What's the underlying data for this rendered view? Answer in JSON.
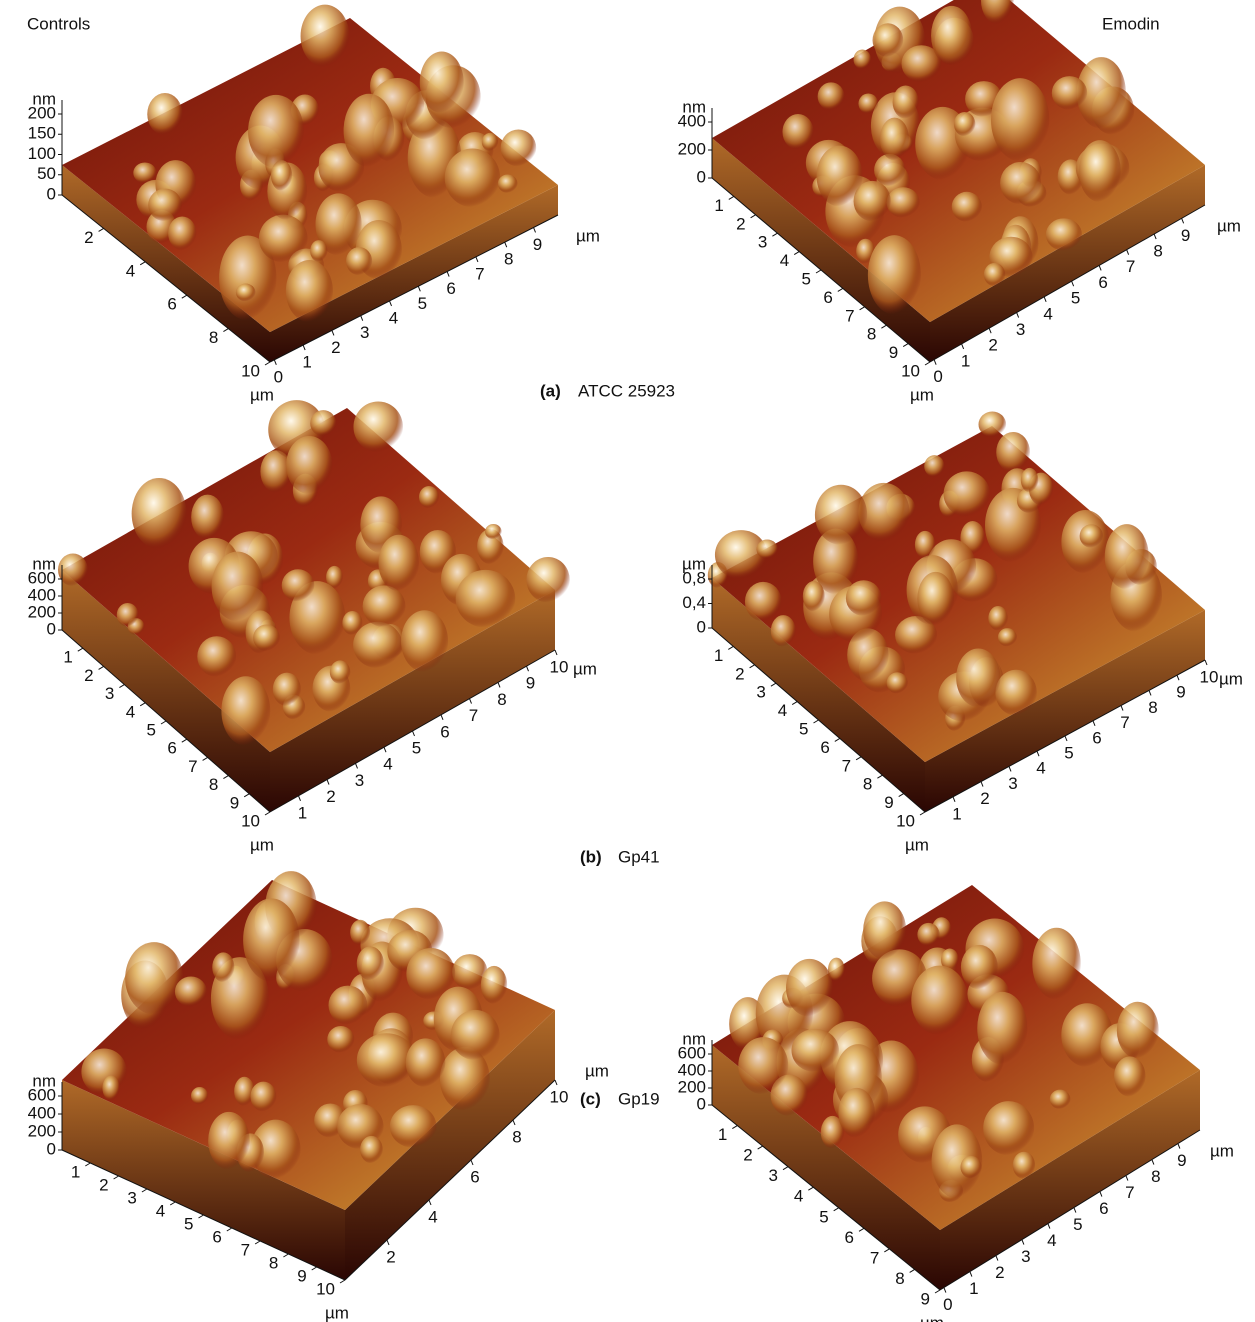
{
  "column_headers": {
    "left": "Controls",
    "right": "Emodin"
  },
  "panels": [
    {
      "label": "(a)",
      "name": "ATCC 25923",
      "images": [
        {
          "z_unit": "nm",
          "z_ticks": [
            "200",
            "150",
            "100",
            "50",
            "0"
          ],
          "x_ticks": [
            "2",
            "4",
            "6",
            "8",
            "10"
          ],
          "x_unit": "µm",
          "y_ticks": [
            "0",
            "1",
            "2",
            "3",
            "4",
            "5",
            "6",
            "7",
            "8",
            "9"
          ],
          "y_unit": "µm"
        },
        {
          "z_unit": "nm",
          "z_ticks": [
            "400",
            "200",
            "0"
          ],
          "x_ticks": [
            "1",
            "2",
            "3",
            "4",
            "5",
            "6",
            "7",
            "8",
            "9",
            "10"
          ],
          "x_unit": "µm",
          "y_ticks": [
            "0",
            "1",
            "2",
            "3",
            "4",
            "5",
            "6",
            "7",
            "8",
            "9"
          ],
          "y_unit": "µm"
        }
      ]
    },
    {
      "label": "(b)",
      "name": "Gp41",
      "images": [
        {
          "z_unit": "nm",
          "z_ticks": [
            "600",
            "400",
            "200",
            "0"
          ],
          "x_ticks": [
            "1",
            "2",
            "3",
            "4",
            "5",
            "6",
            "7",
            "8",
            "9",
            "10"
          ],
          "x_unit": "µm",
          "y_ticks": [
            "1",
            "2",
            "3",
            "4",
            "5",
            "6",
            "7",
            "8",
            "9",
            "10"
          ],
          "y_unit": "µm"
        },
        {
          "z_unit": "µm",
          "z_ticks": [
            "0,8",
            "0,4",
            "0"
          ],
          "x_ticks": [
            "1",
            "2",
            "3",
            "4",
            "5",
            "6",
            "7",
            "8",
            "9",
            "10"
          ],
          "x_unit": "µm",
          "y_ticks": [
            "1",
            "2",
            "3",
            "4",
            "5",
            "6",
            "7",
            "8",
            "9",
            "10"
          ],
          "y_unit": "µm"
        }
      ]
    },
    {
      "label": "(c)",
      "name": "Gp19",
      "images": [
        {
          "z_unit": "nm",
          "z_ticks": [
            "600",
            "400",
            "200",
            "0"
          ],
          "x_ticks": [
            "1",
            "2",
            "3",
            "4",
            "5",
            "6",
            "7",
            "8",
            "9",
            "10"
          ],
          "x_unit": "µm",
          "y_ticks": [
            "2",
            "4",
            "6",
            "8",
            "10"
          ],
          "y_unit": "µm"
        },
        {
          "z_unit": "nm",
          "z_ticks": [
            "600",
            "400",
            "200",
            "0"
          ],
          "x_ticks": [
            "1",
            "2",
            "3",
            "4",
            "5",
            "6",
            "7",
            "8",
            "9"
          ],
          "x_unit": "µm",
          "y_ticks": [
            "0",
            "1",
            "2",
            "3",
            "4",
            "5",
            "6",
            "7",
            "8",
            "9"
          ],
          "y_unit": "µm"
        }
      ]
    }
  ]
}
